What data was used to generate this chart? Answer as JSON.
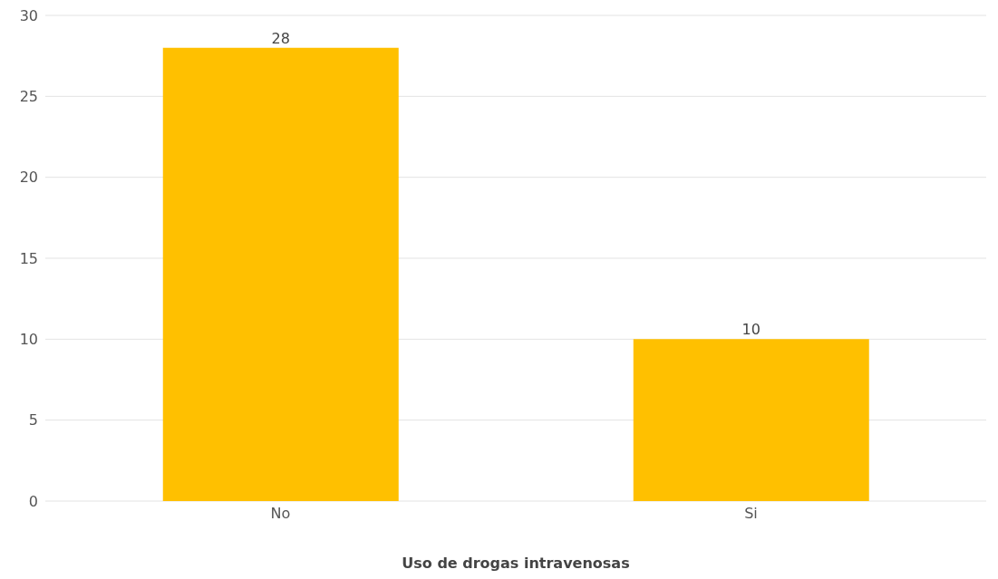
{
  "chart_data": {
    "type": "bar",
    "xlabel": "Uso de drogas intravenosas",
    "categories": [
      "No",
      "Si"
    ],
    "values": [
      28,
      10
    ],
    "color": "#ffc000",
    "ylim": [
      0,
      30
    ],
    "yticks": [
      0,
      5,
      10,
      15,
      20,
      25,
      30
    ],
    "grid": "y",
    "data_labels": true
  }
}
